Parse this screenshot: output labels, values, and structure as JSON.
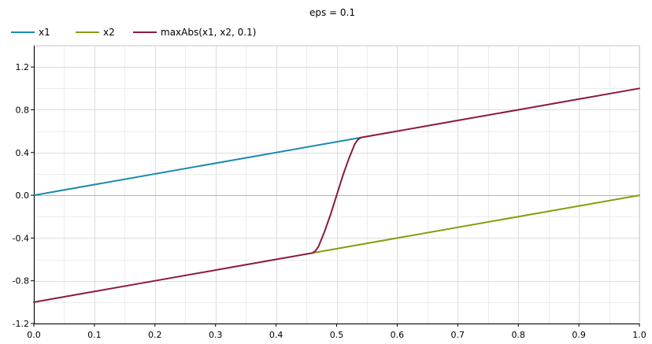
{
  "chart_data": {
    "type": "line",
    "title": "eps = 0.1",
    "xlabel": "",
    "ylabel": "",
    "xlim": [
      0.0,
      1.0
    ],
    "ylim": [
      -1.2,
      1.4
    ],
    "x_ticks": [
      "0.0",
      "0.1",
      "0.2",
      "0.3",
      "0.4",
      "0.5",
      "0.6",
      "0.7",
      "0.8",
      "0.9",
      "1.0"
    ],
    "y_ticks": [
      "1.2",
      "0.8",
      "0.4",
      "0.0",
      "-0.4",
      "-0.8",
      "-1.2"
    ],
    "grid": true,
    "legend_position": "top-left",
    "series": [
      {
        "name": "x1",
        "color": "#1b8bae",
        "x": [
          0.0,
          0.54
        ],
        "y": [
          0.0,
          0.54
        ]
      },
      {
        "name": "x2",
        "color": "#8a9b0f",
        "x": [
          0.46,
          1.0
        ],
        "y": [
          -0.54,
          0.0
        ]
      },
      {
        "name": "maxAbs(x1, x2, 0.1)",
        "color": "#8b1a3c",
        "x": [
          0.0,
          0.1,
          0.2,
          0.3,
          0.4,
          0.45,
          0.46,
          0.465,
          0.47,
          0.48,
          0.49,
          0.5,
          0.51,
          0.52,
          0.53,
          0.535,
          0.54,
          0.55,
          0.6,
          0.7,
          0.8,
          0.9,
          1.0
        ],
        "y": [
          -1.0,
          -0.9,
          -0.8,
          -0.7,
          -0.6,
          -0.55,
          -0.54,
          -0.52,
          -0.48,
          -0.34,
          -0.18,
          0.0,
          0.18,
          0.34,
          0.48,
          0.52,
          0.54,
          0.55,
          0.6,
          0.7,
          0.8,
          0.9,
          1.0
        ]
      }
    ]
  }
}
